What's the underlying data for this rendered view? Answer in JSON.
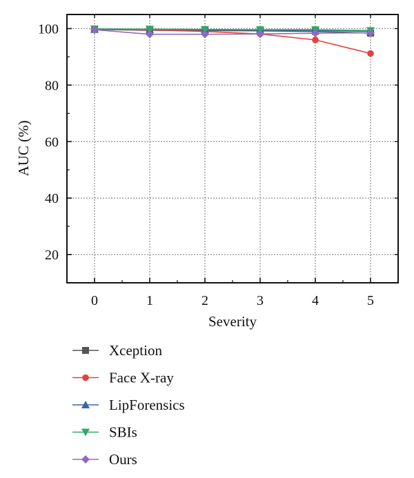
{
  "chart_data": {
    "type": "line",
    "xlabel": "Severity",
    "ylabel": "AUC (%)",
    "x": [
      0,
      1,
      2,
      3,
      4,
      5
    ],
    "xlim": [
      -0.5,
      5.5
    ],
    "ylim": [
      10,
      105
    ],
    "xticks": [
      "0",
      "1",
      "2",
      "3",
      "4",
      "5"
    ],
    "yticks": [
      "20",
      "40",
      "60",
      "80",
      "100"
    ],
    "grid": true,
    "legend_position": "bottom-left",
    "series": [
      {
        "name": "Xception",
        "color": "#555555",
        "marker": "square",
        "values": [
          99.7,
          99.4,
          99.3,
          99.2,
          99.0,
          98.4
        ]
      },
      {
        "name": "Face X-ray",
        "color": "#e8403a",
        "marker": "circle",
        "values": [
          99.8,
          99.5,
          99.0,
          98.1,
          96.0,
          91.2
        ]
      },
      {
        "name": "LipForensics",
        "color": "#3a62b0",
        "marker": "triangle-up",
        "values": [
          99.8,
          99.7,
          99.6,
          99.5,
          99.4,
          99.0
        ]
      },
      {
        "name": "SBIs",
        "color": "#2fa86a",
        "marker": "triangle-down",
        "values": [
          99.9,
          99.8,
          99.7,
          99.6,
          99.6,
          99.3
        ]
      },
      {
        "name": "Ours",
        "color": "#8e6bbf",
        "marker": "diamond",
        "values": [
          99.6,
          98.0,
          98.0,
          98.1,
          98.4,
          98.5
        ]
      }
    ]
  }
}
